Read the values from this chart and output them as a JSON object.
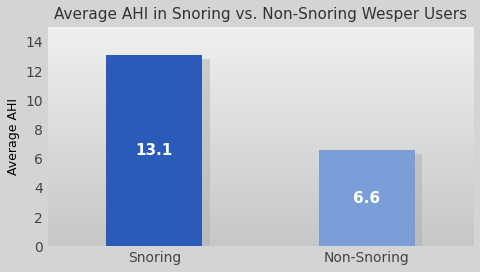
{
  "title": "Average AHI in Snoring vs. Non-Snoring Wesper Users",
  "categories": [
    "Snoring",
    "Non-Snoring"
  ],
  "values": [
    13.1,
    6.6
  ],
  "bar_colors": [
    "#2B5BB8",
    "#7B9ED9"
  ],
  "bar_labels": [
    "13.1",
    "6.6"
  ],
  "ylabel": "Average AHI",
  "ylim": [
    0,
    15
  ],
  "yticks": [
    0,
    2,
    4,
    6,
    8,
    10,
    12,
    14
  ],
  "bg_top": "#F0F0F0",
  "bg_bottom": "#C8C8C8",
  "fig_bg": "#D4D4D4",
  "title_fontsize": 11,
  "label_fontsize": 10,
  "ylabel_fontsize": 9,
  "bar_label_fontsize": 11,
  "bar_width": 0.45,
  "shadow_color": "#B0B0B0"
}
